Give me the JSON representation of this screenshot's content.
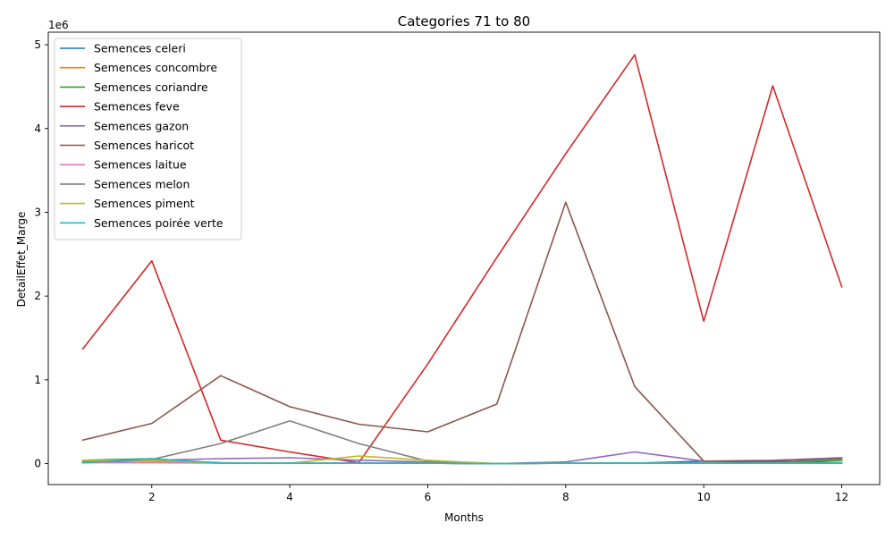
{
  "chart_data": {
    "type": "line",
    "title": "Categories 71 to 80",
    "xlabel": "Months",
    "ylabel": "DetailEffet_Marge",
    "y_scale_label": "1e6",
    "xlim": [
      0.5,
      12.55
    ],
    "ylim": [
      -250000,
      5150000
    ],
    "x_ticks": [
      2,
      4,
      6,
      8,
      10,
      12
    ],
    "x_tick_labels": [
      "2",
      "4",
      "6",
      "8",
      "10",
      "12"
    ],
    "y_ticks": [
      0,
      1000000,
      2000000,
      3000000,
      4000000,
      5000000
    ],
    "y_tick_labels": [
      "0",
      "1",
      "2",
      "3",
      "4",
      "5"
    ],
    "legend_position": "top-left",
    "grid": false,
    "x": [
      1,
      2,
      3,
      4,
      5,
      6,
      7,
      8,
      9,
      10,
      11,
      12
    ],
    "series": [
      {
        "name": "Semences celeri",
        "color": "#1f77b4",
        "values": [
          10000,
          40000,
          10000,
          5000,
          5000,
          5000,
          0,
          5000,
          5000,
          30000,
          20000,
          10000
        ]
      },
      {
        "name": "Semences concombre",
        "color": "#ff7f0e",
        "values": [
          40000,
          30000,
          5000,
          5000,
          5000,
          5000,
          0,
          5000,
          5000,
          5000,
          5000,
          5000
        ]
      },
      {
        "name": "Semences coriandre",
        "color": "#2ca02c",
        "values": [
          40000,
          60000,
          5000,
          5000,
          5000,
          5000,
          0,
          5000,
          5000,
          5000,
          10000,
          40000
        ]
      },
      {
        "name": "Semences feve",
        "color": "#d62728",
        "values": [
          1370000,
          2420000,
          280000,
          140000,
          10000,
          1190000,
          2460000,
          3700000,
          4880000,
          1700000,
          4510000,
          2110000
        ]
      },
      {
        "name": "Semences gazon",
        "color": "#9467bd",
        "values": [
          20000,
          40000,
          60000,
          70000,
          40000,
          20000,
          0,
          20000,
          140000,
          30000,
          40000,
          70000
        ]
      },
      {
        "name": "Semences haricot",
        "color": "#8c564b",
        "values": [
          280000,
          480000,
          1050000,
          680000,
          470000,
          380000,
          710000,
          3120000,
          920000,
          30000,
          30000,
          60000
        ]
      },
      {
        "name": "Semences laitue",
        "color": "#e377c2",
        "values": [
          10000,
          10000,
          5000,
          5000,
          5000,
          5000,
          0,
          5000,
          5000,
          5000,
          5000,
          5000
        ]
      },
      {
        "name": "Semences melon",
        "color": "#7f7f7f",
        "values": [
          20000,
          50000,
          240000,
          510000,
          240000,
          30000,
          0,
          5000,
          5000,
          5000,
          5000,
          5000
        ]
      },
      {
        "name": "Semences piment",
        "color": "#bcbd22",
        "values": [
          40000,
          40000,
          5000,
          5000,
          90000,
          40000,
          0,
          5000,
          5000,
          5000,
          5000,
          5000
        ]
      },
      {
        "name": "Semences poirée verte",
        "color": "#17becf",
        "values": [
          10000,
          60000,
          5000,
          5000,
          5000,
          5000,
          0,
          5000,
          5000,
          5000,
          5000,
          5000
        ]
      }
    ]
  }
}
